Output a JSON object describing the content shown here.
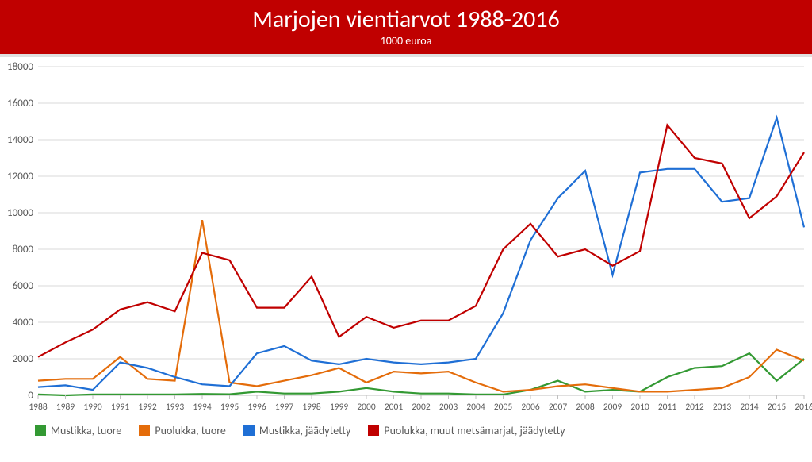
{
  "header": {
    "title": "Marjojen vientiarvot 1988-2016",
    "subtitle": "1000 euroa"
  },
  "chart": {
    "type": "line",
    "background_color": "#ffffff",
    "grid_color": "#d9d9d9",
    "axis_color": "#bfbfbf",
    "tick_font_color": "#595959",
    "line_width": 2.2,
    "y": {
      "min": 0,
      "max": 18000,
      "step": 2000
    },
    "years": [
      1988,
      1989,
      1990,
      1991,
      1992,
      1993,
      1994,
      1995,
      1996,
      1997,
      1998,
      1999,
      2000,
      2001,
      2002,
      2003,
      2004,
      2005,
      2006,
      2007,
      2008,
      2009,
      2010,
      2011,
      2012,
      2013,
      2014,
      2015,
      2016
    ],
    "series": [
      {
        "key": "mustikka_tuore",
        "label": "Mustikka, tuore",
        "color": "#339933",
        "values": [
          50,
          0,
          50,
          50,
          50,
          50,
          80,
          60,
          200,
          100,
          100,
          200,
          400,
          200,
          100,
          100,
          50,
          50,
          300,
          800,
          200,
          300,
          200,
          1000,
          1500,
          1600,
          2300,
          800,
          2000
        ]
      },
      {
        "key": "puolukka_tuore",
        "label": "Puolukka, tuore",
        "color": "#e46c0a",
        "values": [
          800,
          900,
          900,
          2100,
          900,
          800,
          9600,
          700,
          500,
          800,
          1100,
          1500,
          700,
          1300,
          1200,
          1300,
          700,
          200,
          300,
          500,
          600,
          400,
          200,
          200,
          300,
          400,
          1000,
          2500,
          1900
        ]
      },
      {
        "key": "mustikka_jaadytetty",
        "label": "Mustikka, jäädytetty",
        "color": "#1f6fd5",
        "values": [
          450,
          550,
          300,
          1800,
          1500,
          1000,
          600,
          500,
          2300,
          2700,
          1900,
          1700,
          2000,
          1800,
          1700,
          1800,
          2000,
          4500,
          8500,
          10800,
          12300,
          6600,
          12200,
          12400,
          12400,
          10600,
          10800,
          15200,
          9200
        ]
      },
      {
        "key": "puolukka_muut_jaadytetty",
        "label": "Puolukka, muut metsämarjat, jäädytetty",
        "color": "#c00000",
        "values": [
          2100,
          2900,
          3600,
          4700,
          5100,
          4600,
          7800,
          7400,
          4800,
          4800,
          6500,
          3200,
          4300,
          3700,
          4100,
          4100,
          4900,
          8000,
          9400,
          7600,
          8000,
          7100,
          7900,
          14800,
          13000,
          12700,
          9700,
          10900,
          13300
        ]
      }
    ]
  },
  "legend": [
    {
      "label": "Mustikka, tuore",
      "color": "#339933"
    },
    {
      "label": "Puolukka, tuore",
      "color": "#e46c0a"
    },
    {
      "label": "Mustikka, jäädytetty",
      "color": "#1f6fd5"
    },
    {
      "label": "Puolukka, muut metsämarjat, jäädytetty",
      "color": "#c00000"
    }
  ]
}
